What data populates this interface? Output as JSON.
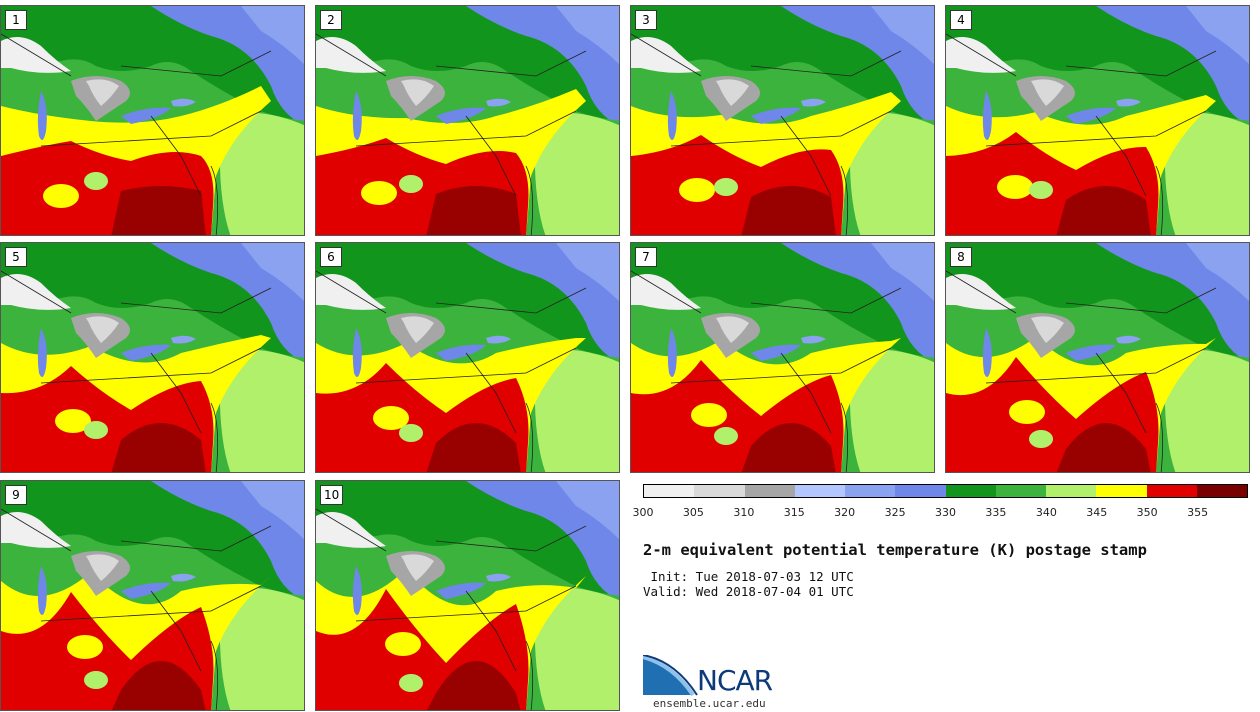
{
  "figure": {
    "title": "2-m equivalent potential temperature (K) postage stamp",
    "init_line": " Init: Tue 2018-07-03 12 UTC",
    "valid_line": "Valid: Wed 2018-07-04 01 UTC"
  },
  "colorbar": {
    "ticks": [
      "300",
      "305",
      "310",
      "315",
      "320",
      "325",
      "330",
      "335",
      "340",
      "345",
      "350",
      "355"
    ],
    "colors": [
      "#f0f0f0",
      "#d9d9d9",
      "#a6a6a6",
      "#b3c6ff",
      "#8aa2f0",
      "#6f87e8",
      "#12951c",
      "#3cb33c",
      "#b0f06a",
      "#ffff00",
      "#e00000",
      "#7a0000"
    ]
  },
  "members": [
    {
      "label": "1"
    },
    {
      "label": "2"
    },
    {
      "label": "3"
    },
    {
      "label": "4"
    },
    {
      "label": "5"
    },
    {
      "label": "6"
    },
    {
      "label": "7"
    },
    {
      "label": "8"
    },
    {
      "label": "9"
    },
    {
      "label": "10"
    }
  ],
  "logo": {
    "name": "NCAR",
    "url": "ensemble.ucar.edu"
  }
}
